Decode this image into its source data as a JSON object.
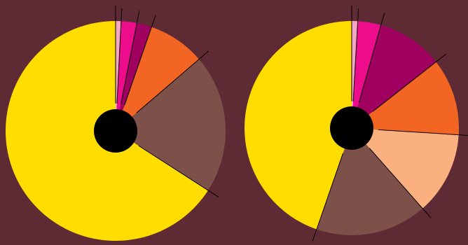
{
  "background_color": "#5e2a34",
  "chart_data": [
    {
      "type": "pie",
      "title": "",
      "categories": [
        "",
        "",
        "",
        "",
        "",
        ""
      ],
      "values": [
        0.8,
        2.3,
        2.2,
        8.4,
        20.4,
        65.9
      ],
      "colors": [
        "#f4a7c4",
        "#ec0c8c",
        "#a00060",
        "#f26522",
        "#7d514a",
        "#ffdd00"
      ],
      "start_angle_deg": 0,
      "direction": "clockwise",
      "center_hole_color": "#000000",
      "leader_lines": true
    },
    {
      "type": "pie",
      "title": "",
      "categories": [
        "",
        "",
        "",
        "",
        "",
        "",
        ""
      ],
      "values": [
        0.9,
        3.5,
        10.0,
        11.6,
        12.5,
        16.8,
        44.7
      ],
      "colors": [
        "#f4a7c4",
        "#ec0c8c",
        "#a00060",
        "#f26522",
        "#fbb07f",
        "#7d514a",
        "#ffdd00"
      ],
      "start_angle_deg": 0,
      "direction": "clockwise",
      "center_hole_color": "#000000",
      "leader_lines": true
    }
  ]
}
